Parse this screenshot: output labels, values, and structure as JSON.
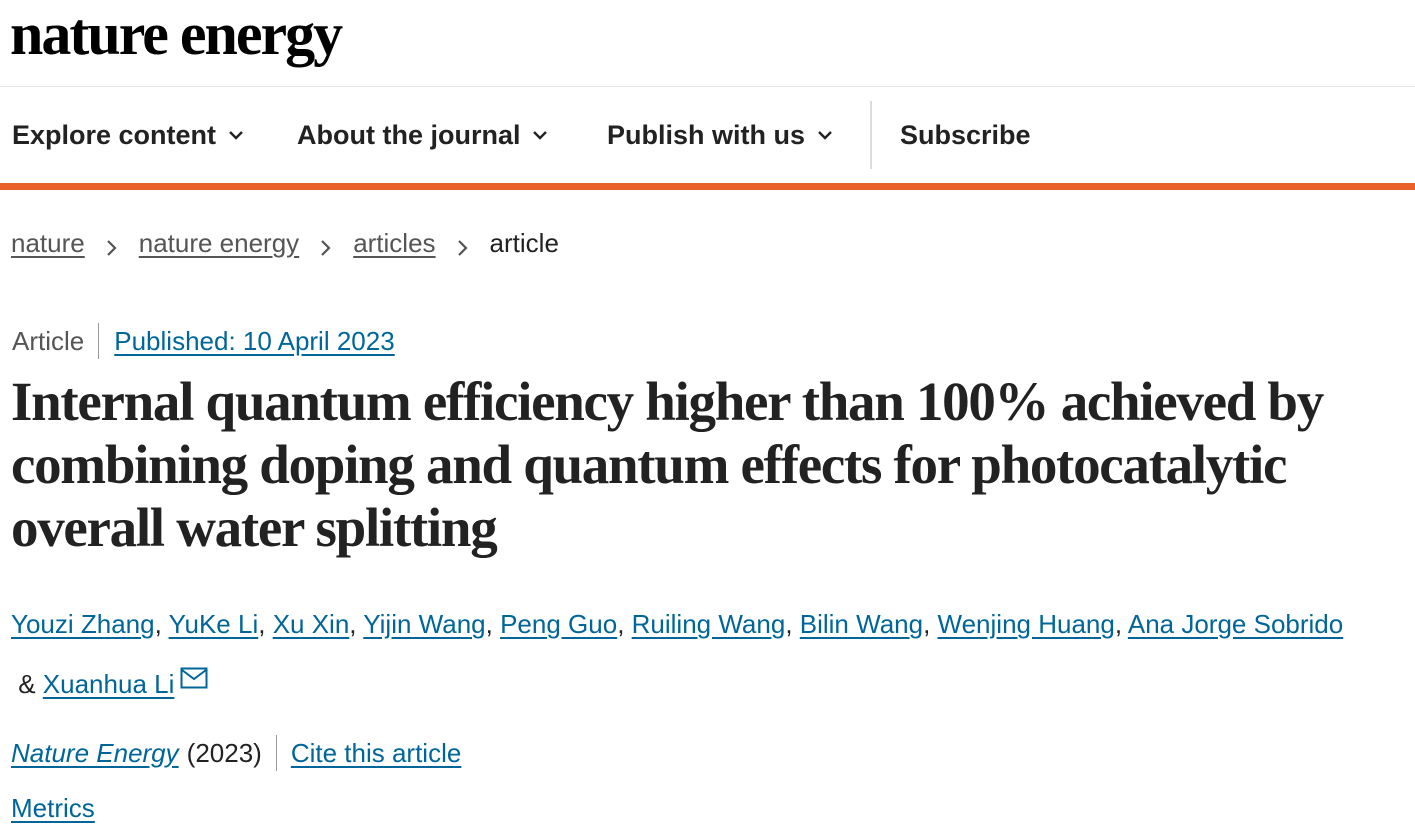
{
  "header": {
    "logo": "nature energy"
  },
  "nav": {
    "items": [
      {
        "label": "Explore content",
        "has_dropdown": true
      },
      {
        "label": "About the journal",
        "has_dropdown": true
      },
      {
        "label": "Publish with us",
        "has_dropdown": true
      },
      {
        "label": "Subscribe",
        "has_dropdown": false
      }
    ]
  },
  "breadcrumb": {
    "items": [
      "nature",
      "nature energy",
      "articles"
    ],
    "current": "article"
  },
  "article": {
    "type": "Article",
    "published": "Published: 10 April 2023",
    "title": "Internal quantum efficiency higher than 100% achieved by combining doping and quantum effects for photocatalytic overall water splitting",
    "authors": [
      "Youzi Zhang",
      "YuKe Li",
      "Xu Xin",
      "Yijin Wang",
      "Peng Guo",
      "Ruiling Wang",
      "Bilin Wang",
      "Wenjing Huang",
      "Ana Jorge Sobrido",
      "Xuanhua Li"
    ],
    "separator": ", ",
    "last_separator": " & ",
    "journal": "Nature Energy",
    "year": "(2023)",
    "cite_label": "Cite this article",
    "metrics_label": "Metrics"
  },
  "icons": {
    "dropdown": "chevron-down-icon",
    "breadcrumb_sep": "chevron-right-icon",
    "contact": "mail-icon"
  },
  "colors": {
    "accent": "#e8612c",
    "link": "#006699",
    "text": "#222222",
    "muted": "#555555"
  }
}
